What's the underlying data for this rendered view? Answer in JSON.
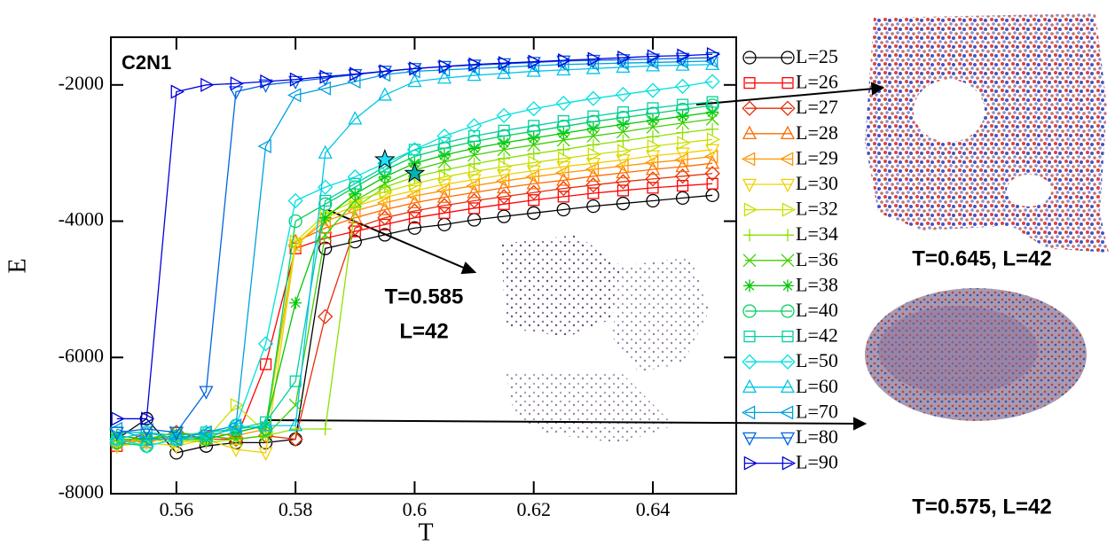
{
  "chart_data": {
    "type": "line",
    "x_label": "T",
    "y_label": "E",
    "annotations": [
      "C2N1",
      "T=0.585",
      "L=42",
      "T=0.645, L=42",
      "T=0.575, L=42"
    ],
    "xlim": [
      0.549,
      0.654
    ],
    "ylim": [
      -8000,
      -1300
    ],
    "xticks": [
      0.56,
      0.58,
      0.6,
      0.62,
      0.64
    ],
    "yticks": [
      -8000,
      -6000,
      -4000,
      -2000
    ],
    "legend": "right",
    "x": [
      0.55,
      0.555,
      0.56,
      0.565,
      0.57,
      0.575,
      0.58,
      0.585,
      0.59,
      0.595,
      0.6,
      0.605,
      0.61,
      0.615,
      0.62,
      0.625,
      0.63,
      0.635,
      0.64,
      0.645,
      0.65
    ],
    "series": [
      {
        "name": "L=25",
        "color": "#000000",
        "marker": "circle",
        "values": [
          -7200,
          -6900,
          -7400,
          -7300,
          -7250,
          -7250,
          -7200,
          -4400,
          -4300,
          -4200,
          -4100,
          -4050,
          -3980,
          -3930,
          -3880,
          -3830,
          -3780,
          -3740,
          -3700,
          -3660,
          -3620
        ]
      },
      {
        "name": "L=26",
        "color": "#ff0000",
        "marker": "square",
        "values": [
          -7300,
          -7100,
          -7200,
          -7150,
          -7200,
          -6100,
          -4400,
          -4250,
          -4150,
          -4050,
          -3950,
          -3880,
          -3810,
          -3750,
          -3690,
          -3640,
          -3590,
          -3550,
          -3510,
          -3480,
          -3450
        ]
      },
      {
        "name": "L=27",
        "color": "#e62d0a",
        "marker": "diamond",
        "values": [
          -7250,
          -7200,
          -7100,
          -7200,
          -7200,
          -7150,
          -7200,
          -5400,
          -4100,
          -3950,
          -3850,
          -3770,
          -3700,
          -3640,
          -3580,
          -3520,
          -3470,
          -3420,
          -3380,
          -3340,
          -3300
        ]
      },
      {
        "name": "L=28",
        "color": "#ff6a00",
        "marker": "tri-up",
        "values": [
          -7200,
          -7250,
          -7150,
          -7200,
          -7100,
          -7000,
          -4300,
          -4100,
          -3950,
          -3830,
          -3730,
          -3650,
          -3580,
          -3510,
          -3450,
          -3400,
          -3340,
          -3290,
          -3240,
          -3200,
          -3150
        ]
      },
      {
        "name": "L=29",
        "color": "#ff9400",
        "marker": "tri-left",
        "values": [
          -7250,
          -7200,
          -7200,
          -7100,
          -7150,
          -7050,
          -4350,
          -4000,
          -3850,
          -3730,
          -3630,
          -3550,
          -3480,
          -3410,
          -3350,
          -3290,
          -3240,
          -3190,
          -3140,
          -3100,
          -3050
        ]
      },
      {
        "name": "L=30",
        "color": "#f0d000",
        "marker": "tri-down",
        "values": [
          -7300,
          -7250,
          -7300,
          -7200,
          -7350,
          -7400,
          -4350,
          -3950,
          -3780,
          -3650,
          -3550,
          -3460,
          -3390,
          -3320,
          -3260,
          -3200,
          -3150,
          -3100,
          -3040,
          -3000,
          -2950
        ]
      },
      {
        "name": "L=32",
        "color": "#c8e000",
        "marker": "tri-right",
        "values": [
          -7200,
          -7200,
          -7250,
          -7200,
          -6700,
          -7100,
          -4300,
          -3900,
          -3700,
          -3570,
          -3450,
          -3350,
          -3270,
          -3200,
          -3140,
          -3080,
          -3020,
          -2970,
          -2900,
          -2850,
          -2800
        ]
      },
      {
        "name": "L=34",
        "color": "#8ee000",
        "marker": "plus",
        "values": [
          -7300,
          -7200,
          -7200,
          -7250,
          -7200,
          -7150,
          -7050,
          -7050,
          -3800,
          -3500,
          -3350,
          -3250,
          -3160,
          -3080,
          -3010,
          -2950,
          -2880,
          -2820,
          -2760,
          -2700,
          -2650
        ]
      },
      {
        "name": "L=36",
        "color": "#40d000",
        "marker": "cross",
        "values": [
          -7200,
          -7200,
          -7100,
          -7150,
          -7200,
          -7150,
          -6700,
          -4200,
          -3700,
          -3450,
          -3250,
          -3130,
          -3030,
          -2950,
          -2880,
          -2810,
          -2750,
          -2690,
          -2620,
          -2560,
          -2500
        ]
      },
      {
        "name": "L=38",
        "color": "#00c800",
        "marker": "asterisk",
        "values": [
          -7150,
          -7200,
          -7150,
          -7200,
          -7100,
          -7000,
          -5200,
          -3950,
          -3600,
          -3350,
          -3150,
          -3030,
          -2930,
          -2850,
          -2780,
          -2710,
          -2640,
          -2580,
          -2520,
          -2460,
          -2400
        ]
      },
      {
        "name": "L=40",
        "color": "#00d060",
        "marker": "circle",
        "values": [
          -7250,
          -7300,
          -7200,
          -7200,
          -7000,
          -7050,
          -4000,
          -3750,
          -3500,
          -3250,
          -3050,
          -2930,
          -2830,
          -2750,
          -2680,
          -2610,
          -2540,
          -2480,
          -2420,
          -2360,
          -2300
        ]
      },
      {
        "name": "L=42",
        "color": "#00d0a0",
        "marker": "square",
        "values": [
          -7100,
          -7100,
          -7150,
          -7100,
          -7050,
          -6950,
          -6350,
          -3700,
          -3450,
          -3200,
          -2950,
          -2850,
          -2750,
          -2670,
          -2600,
          -2530,
          -2460,
          -2400,
          -2340,
          -2290,
          -2250
        ]
      },
      {
        "name": "L=50",
        "color": "#00e0e0",
        "marker": "diamond",
        "values": [
          -7200,
          -7300,
          -7200,
          -7100,
          -7000,
          -5800,
          -3700,
          -3500,
          -3350,
          -3150,
          -2950,
          -2750,
          -2600,
          -2450,
          -2350,
          -2270,
          -2200,
          -2140,
          -2080,
          -2020,
          -1950
        ]
      },
      {
        "name": "L=60",
        "color": "#00c4e8",
        "marker": "tri-up",
        "values": [
          -7200,
          -7100,
          -7200,
          -7150,
          -7050,
          -7000,
          -7000,
          -3000,
          -2500,
          -2150,
          -1950,
          -1900,
          -1860,
          -1830,
          -1800,
          -1780,
          -1760,
          -1740,
          -1720,
          -1710,
          -1700
        ]
      },
      {
        "name": "L=70",
        "color": "#00a0e0",
        "marker": "tri-left",
        "values": [
          -7050,
          -7200,
          -7200,
          -7100,
          -7000,
          -2900,
          -2150,
          -2050,
          -1950,
          -1850,
          -1800,
          -1780,
          -1760,
          -1740,
          -1720,
          -1700,
          -1690,
          -1680,
          -1670,
          -1660,
          -1650
        ]
      },
      {
        "name": "L=80",
        "color": "#0064e0",
        "marker": "tri-down",
        "values": [
          -7100,
          -7050,
          -7100,
          -6500,
          -2100,
          -2000,
          -1950,
          -1900,
          -1850,
          -1800,
          -1760,
          -1730,
          -1710,
          -1690,
          -1670,
          -1650,
          -1640,
          -1630,
          -1620,
          -1610,
          -1600
        ]
      },
      {
        "name": "L=90",
        "color": "#0000e0",
        "marker": "tri-right",
        "values": [
          -6900,
          -6900,
          -2100,
          -2000,
          -1980,
          -1950,
          -1920,
          -1880,
          -1840,
          -1800,
          -1760,
          -1730,
          -1700,
          -1680,
          -1660,
          -1640,
          -1620,
          -1600,
          -1580,
          -1570,
          -1550
        ]
      }
    ],
    "highlight_points": {
      "x": [
        0.595,
        0.6
      ],
      "values": [
        -3100,
        -3300
      ],
      "colors": [
        "#1ee0ff",
        "#00b4b4"
      ]
    }
  }
}
